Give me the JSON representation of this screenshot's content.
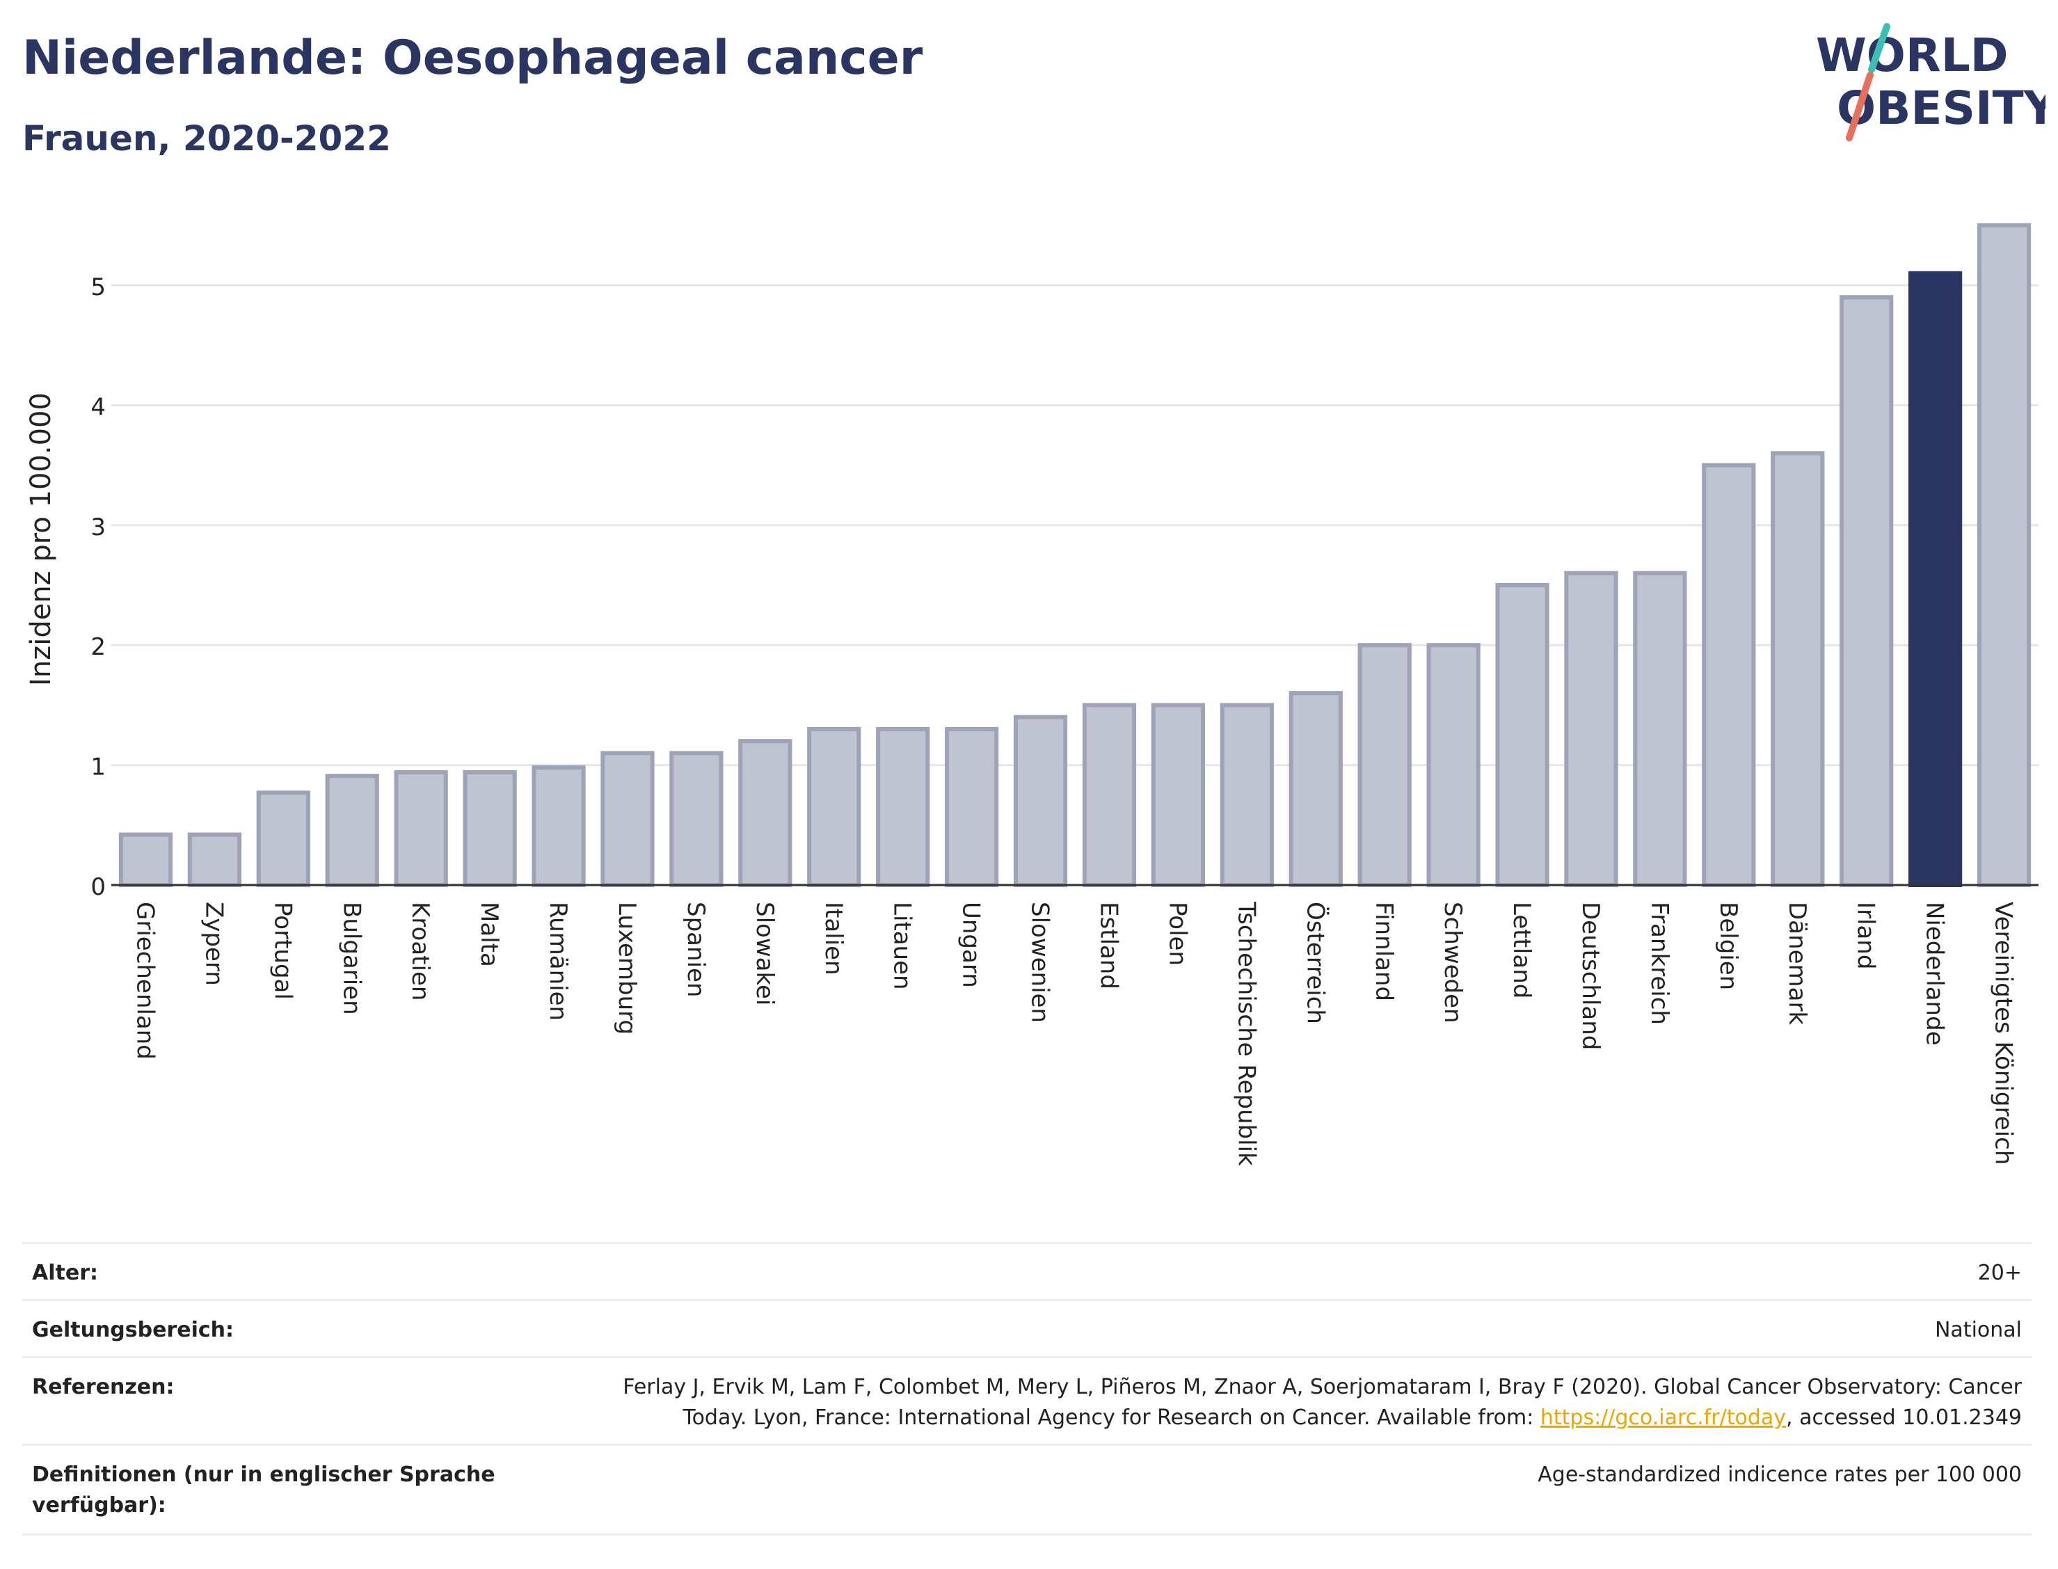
{
  "header": {
    "title": "Niederlande: Oesophageal cancer",
    "subtitle": "Frauen, 2020-2022"
  },
  "logo": {
    "line1": "WORLD",
    "line2": "OBESITY"
  },
  "colors": {
    "title": "#2b3561",
    "bar_default": "#c0c3d0",
    "bar_default_stroke": "#9ea3b8",
    "bar_highlight": "#2b3561",
    "logo_teal": "#3bbfb3",
    "logo_coral": "#e86f5c",
    "link": "#e9a800"
  },
  "chart_data": {
    "type": "bar",
    "ylabel": "Inzidenz pro 100.000",
    "xlabel": "",
    "ylim": [
      0,
      5.5
    ],
    "yticks": [
      0,
      1,
      2,
      3,
      4,
      5
    ],
    "grid": true,
    "highlight": "Niederlande",
    "categories": [
      "Griechenland",
      "Zypern",
      "Portugal",
      "Bulgarien",
      "Kroatien",
      "Malta",
      "Rumänien",
      "Luxemburg",
      "Spanien",
      "Slowakei",
      "Italien",
      "Litauen",
      "Ungarn",
      "Slowenien",
      "Estland",
      "Polen",
      "Tschechische Republik",
      "Österreich",
      "Finnland",
      "Schweden",
      "Lettland",
      "Deutschland",
      "Frankreich",
      "Belgien",
      "Dänemark",
      "Irland",
      "Niederlande",
      "Vereinigtes Königreich"
    ],
    "values": [
      0.42,
      0.42,
      0.77,
      0.91,
      0.94,
      0.94,
      0.98,
      1.1,
      1.1,
      1.2,
      1.3,
      1.3,
      1.3,
      1.4,
      1.5,
      1.5,
      1.5,
      1.6,
      2.0,
      2.0,
      2.5,
      2.6,
      2.6,
      3.5,
      3.6,
      4.9,
      5.1,
      5.5
    ]
  },
  "meta": {
    "alter_label": "Alter:",
    "alter_value": "20+",
    "scope_label": "Geltungsbereich:",
    "scope_value": "National",
    "ref_label": "Referenzen:",
    "ref_line1": "Ferlay J, Ervik M, Lam F, Colombet M, Mery L, Piñeros M, Znaor A, Soerjomataram I, Bray F (2020). Global Cancer Observatory: Cancer",
    "ref_line2_pre": "Today. Lyon, France: International Agency for Research on Cancer. Available from: ",
    "ref_link": "https://gco.iarc.fr/today",
    "ref_line2_post": ", accessed 10.01.2349",
    "def_label": "Definitionen (nur in englischer Sprache verfügbar):",
    "def_value": "Age-standardized indicence rates per 100 000"
  }
}
